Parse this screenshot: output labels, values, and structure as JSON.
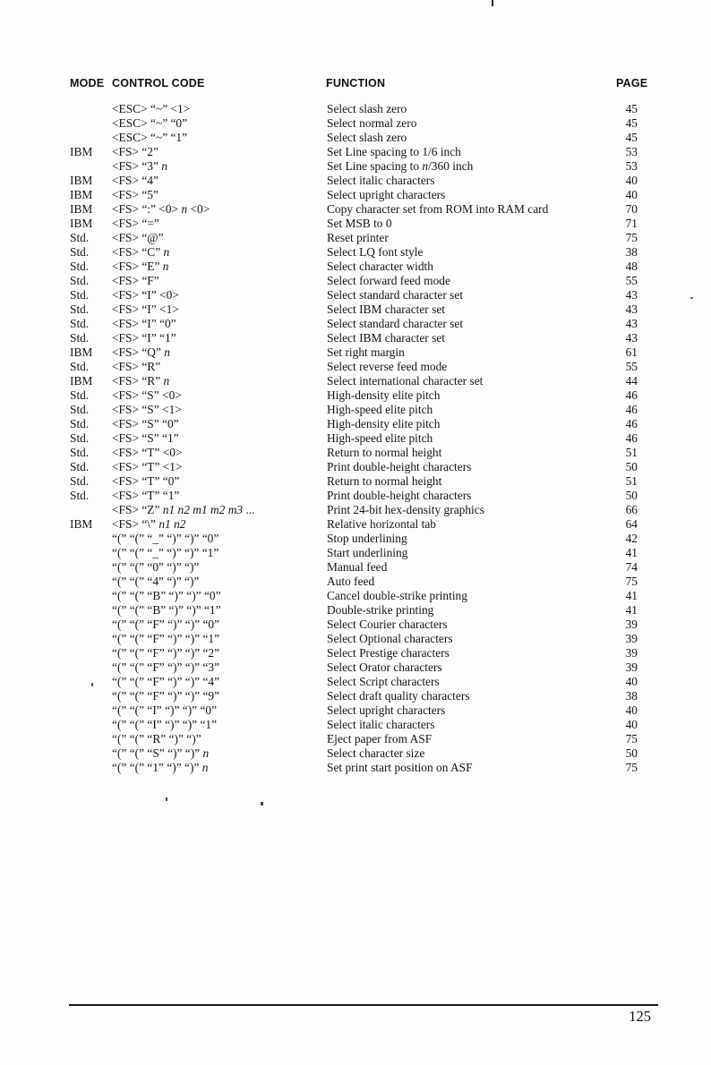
{
  "colors": {
    "paper": "#fdfdfb",
    "ink": "#161616"
  },
  "page_number": "125",
  "table": {
    "header": {
      "mode": "MODE",
      "control_code": "CONTROL CODE",
      "function": "FUNCTION",
      "page": "PAGE"
    },
    "rows": [
      {
        "mode": "",
        "code": "<ESC> “~” <1>",
        "function": "Select slash zero",
        "page": "45"
      },
      {
        "mode": "",
        "code": "<ESC> “~” “0”",
        "function": "Select normal zero",
        "page": "45"
      },
      {
        "mode": "",
        "code": "<ESC> “~” “1”",
        "function": "Select slash zero",
        "page": "45"
      },
      {
        "mode": "IBM",
        "code": "<FS> “2”",
        "function": "Set Line spacing to 1/6 inch",
        "page": "53"
      },
      {
        "mode": "",
        "code": "<FS> “3” n",
        "function": "Set Line spacing to n/360 inch",
        "page": "53"
      },
      {
        "mode": "IBM",
        "code": "<FS> “4”",
        "function": "Select italic characters",
        "page": "40"
      },
      {
        "mode": "IBM",
        "code": "<FS> “5”",
        "function": "Select upright characters",
        "page": "40"
      },
      {
        "mode": "IBM",
        "code": "<FS> “:” <0> n <0>",
        "function": "Copy character set from ROM into RAM card",
        "page": "70"
      },
      {
        "mode": "IBM",
        "code": "<FS> “=”",
        "function": "Set MSB to 0",
        "page": "71"
      },
      {
        "mode": "Std.",
        "code": "<FS> “@”",
        "function": "Reset printer",
        "page": "75"
      },
      {
        "mode": "Std.",
        "code": "<FS> “C” n",
        "function": "Select LQ font style",
        "page": "38"
      },
      {
        "mode": "Std.",
        "code": "<FS> “E” n",
        "function": "Select character width",
        "page": "48"
      },
      {
        "mode": "Std.",
        "code": "<FS> “F”",
        "function": "Select forward feed mode",
        "page": "55"
      },
      {
        "mode": "Std.",
        "code": "<FS> “I” <0>",
        "function": "Select standard character set",
        "page": "43"
      },
      {
        "mode": "Std.",
        "code": "<FS> “I” <1>",
        "function": "Select IBM character set",
        "page": "43"
      },
      {
        "mode": "Std.",
        "code": "<FS> “I” “0”",
        "function": "Select standard character set",
        "page": "43"
      },
      {
        "mode": "Std.",
        "code": "<FS> “I” “1”",
        "function": "Select IBM character set",
        "page": "43"
      },
      {
        "mode": "IBM",
        "code": "<FS> “Q” n",
        "function": "Set right margin",
        "page": "61"
      },
      {
        "mode": "Std.",
        "code": "<FS> “R”",
        "function": "Select reverse feed mode",
        "page": "55"
      },
      {
        "mode": "IBM",
        "code": "<FS> “R” n",
        "function": "Select international character set",
        "page": "44"
      },
      {
        "mode": "Std.",
        "code": "<FS> “S” <0>",
        "function": "High-density elite pitch",
        "page": "46"
      },
      {
        "mode": "Std.",
        "code": "<FS> “S” <1>",
        "function": "High-speed elite pitch",
        "page": "46"
      },
      {
        "mode": "Std.",
        "code": "<FS> “S” “0”",
        "function": "High-density elite pitch",
        "page": "46"
      },
      {
        "mode": "Std.",
        "code": "<FS> “S” “1”",
        "function": "High-speed elite pitch",
        "page": "46"
      },
      {
        "mode": "Std.",
        "code": "<FS> “T” <0>",
        "function": "Return to normal height",
        "page": "51"
      },
      {
        "mode": "Std.",
        "code": "<FS> “T” <1>",
        "function": "Print double-height characters",
        "page": "50"
      },
      {
        "mode": "Std.",
        "code": "<FS> “T” “0”",
        "function": "Return to normal height",
        "page": "51"
      },
      {
        "mode": "Std.",
        "code": "<FS> “T” “1”",
        "function": "Print double-height characters",
        "page": "50"
      },
      {
        "mode": "",
        "code": "<FS> “Z” n1 n2 m1 m2 m3 ...",
        "function": "Print 24-bit hex-density graphics",
        "page": "66"
      },
      {
        "mode": "IBM",
        "code": "<FS> “\\” n1 n2",
        "function": "Relative horizontal tab",
        "page": "64"
      },
      {
        "mode": "",
        "code": "“(” “(” “_” “)” “)” “0”",
        "function": "Stop underlining",
        "page": "42"
      },
      {
        "mode": "",
        "code": "“(” “(” “_” “)” “)” “1”",
        "function": "Start underlining",
        "page": "41"
      },
      {
        "mode": "",
        "code": "“(” “(” “0” “)” “)”",
        "function": "Manual feed",
        "page": "74"
      },
      {
        "mode": "",
        "code": "“(” “(” “4” “)” “)”",
        "function": "Auto feed",
        "page": "75"
      },
      {
        "mode": "",
        "code": "“(” “(” “B” “)” “)” “0”",
        "function": "Cancel double-strike printing",
        "page": "41"
      },
      {
        "mode": "",
        "code": "“(” “(” “B” “)” “)” “1”",
        "function": "Double-strike printing",
        "page": "41"
      },
      {
        "mode": "",
        "code": "“(” “(” “F” “)” “)” “0”",
        "function": "Select Courier characters",
        "page": "39"
      },
      {
        "mode": "",
        "code": "“(” “(” “F” “)” “)” “1”",
        "function": "Select Optional characters",
        "page": "39"
      },
      {
        "mode": "",
        "code": "“(” “(” “F” “)” “)” “2”",
        "function": "Select Prestige characters",
        "page": "39"
      },
      {
        "mode": "",
        "code": "“(” “(” “F” “)” “)” “3”",
        "function": "Select Orator characters",
        "page": "39"
      },
      {
        "mode": "",
        "code": "“(” “(” “F” “)” “)” “4”",
        "function": "Select Script characters",
        "page": "40"
      },
      {
        "mode": "",
        "code": "“(” “(” “F” “)” “)” “9”",
        "function": "Select draft quality characters",
        "page": "38"
      },
      {
        "mode": "",
        "code": "“(” “(” “I” “)” “)” “0”",
        "function": "Select upright characters",
        "page": "40"
      },
      {
        "mode": "",
        "code": "“(” “(” “I” “)” “)” “1”",
        "function": "Select italic characters",
        "page": "40"
      },
      {
        "mode": "",
        "code": "“(” “(” “R” “)” “)”",
        "function": "Eject paper from ASF",
        "page": "75"
      },
      {
        "mode": "",
        "code": "“(” “(” “S” “)” “)” n",
        "function": "Select character size",
        "page": "50"
      },
      {
        "mode": "",
        "code": "“(” “(” “1” “)” “)” n",
        "function": "Set print start position on ASF",
        "page": "75"
      }
    ]
  }
}
